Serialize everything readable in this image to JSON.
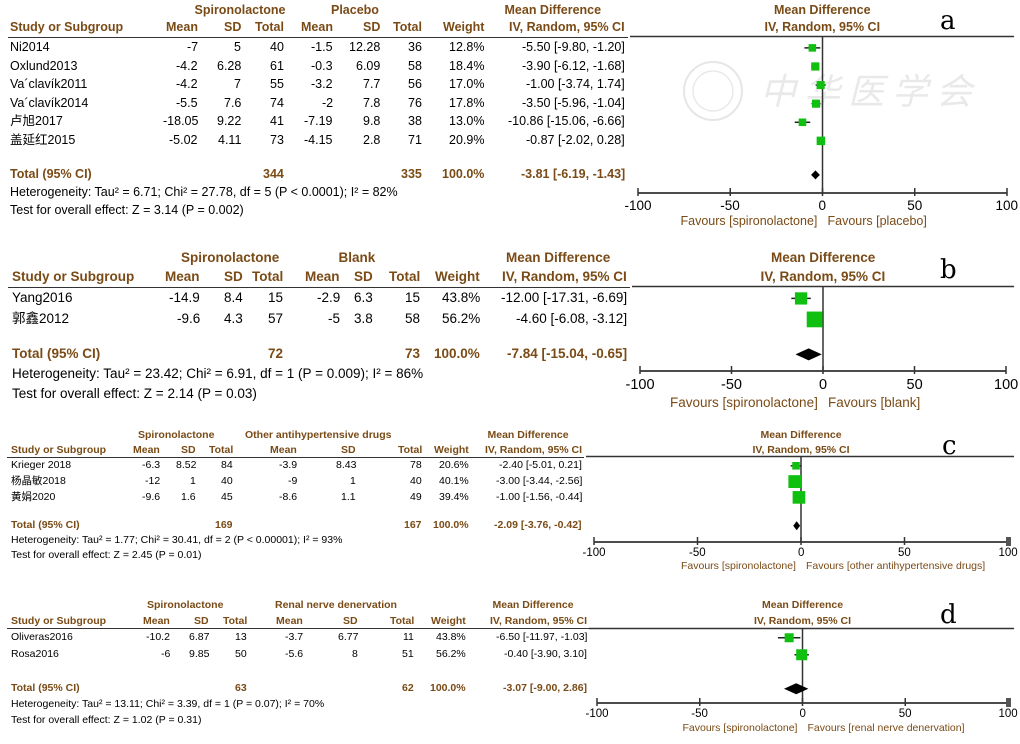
{
  "chart_data": [
    {
      "type": "forest",
      "panel_label": "a",
      "group1": "Spironolactone",
      "group2": "Placebo",
      "columns": [
        "Study or Subgroup",
        "Mean",
        "SD",
        "Total",
        "Mean",
        "SD",
        "Total",
        "Weight",
        "IV, Random, 95% CI"
      ],
      "effect_title": "Mean Difference",
      "effect_subtitle": "IV, Random, 95% CI",
      "studies": [
        {
          "name": "Ni2014",
          "m1": "-7",
          "sd1": "5",
          "n1": "40",
          "m2": "-1.5",
          "sd2": "12.28",
          "n2": "36",
          "weight": "12.8%",
          "ci_text": "-5.50 [-9.80, -1.20]",
          "md": -5.5,
          "lo": -9.8,
          "hi": -1.2,
          "w": 12.8
        },
        {
          "name": "Oxlund2013",
          "m1": "-4.2",
          "sd1": "6.28",
          "n1": "61",
          "m2": "-0.3",
          "sd2": "6.09",
          "n2": "58",
          "weight": "18.4%",
          "ci_text": "-3.90 [-6.12, -1.68]",
          "md": -3.9,
          "lo": -6.12,
          "hi": -1.68,
          "w": 18.4
        },
        {
          "name": "Va´clavík2011",
          "m1": "-4.2",
          "sd1": "7",
          "n1": "55",
          "m2": "-3.2",
          "sd2": "7.7",
          "n2": "56",
          "weight": "17.0%",
          "ci_text": "-1.00 [-3.74, 1.74]",
          "md": -1.0,
          "lo": -3.74,
          "hi": 1.74,
          "w": 17.0
        },
        {
          "name": "Va´clavík2014",
          "m1": "-5.5",
          "sd1": "7.6",
          "n1": "74",
          "m2": "-2",
          "sd2": "7.8",
          "n2": "76",
          "weight": "17.8%",
          "ci_text": "-3.50 [-5.96, -1.04]",
          "md": -3.5,
          "lo": -5.96,
          "hi": -1.04,
          "w": 17.8
        },
        {
          "name": "卢旭2017",
          "m1": "-18.05",
          "sd1": "9.22",
          "n1": "41",
          "m2": "-7.19",
          "sd2": "9.8",
          "n2": "38",
          "weight": "13.0%",
          "ci_text": "-10.86 [-15.06, -6.66]",
          "md": -10.86,
          "lo": -15.06,
          "hi": -6.66,
          "w": 13.0
        },
        {
          "name": "盖延红2015",
          "m1": "-5.02",
          "sd1": "4.11",
          "n1": "73",
          "m2": "-4.15",
          "sd2": "2.8",
          "n2": "71",
          "weight": "20.9%",
          "ci_text": "-0.87 [-2.02, 0.28]",
          "md": -0.87,
          "lo": -2.02,
          "hi": 0.28,
          "w": 20.9
        }
      ],
      "total": {
        "label": "Total (95% CI)",
        "n1": "344",
        "n2": "335",
        "weight": "100.0%",
        "ci_text": "-3.81 [-6.19, -1.43]",
        "md": -3.81,
        "lo": -6.19,
        "hi": -1.43
      },
      "heterogeneity": "Heterogeneity: Tau² = 6.71; Chi² = 27.78, df = 5 (P < 0.0001); I² = 82%",
      "overall_effect": "Test for overall effect: Z = 3.14 (P = 0.002)",
      "xlim": [
        -100,
        100
      ],
      "xticks": [
        "-100",
        "-50",
        "0",
        "50",
        "100"
      ],
      "favours_left": "Favours [spironolactone]",
      "favours_right": "Favours [placebo]"
    },
    {
      "type": "forest",
      "panel_label": "b",
      "group1": "Spironolactone",
      "group2": "Blank",
      "columns": [
        "Study or Subgroup",
        "Mean",
        "SD",
        "Total",
        "Mean",
        "SD",
        "Total",
        "Weight",
        "IV, Random, 95% CI"
      ],
      "effect_title": "Mean Difference",
      "effect_subtitle": "IV, Random, 95% CI",
      "studies": [
        {
          "name": "Yang2016",
          "m1": "-14.9",
          "sd1": "8.4",
          "n1": "15",
          "m2": "-2.9",
          "sd2": "6.3",
          "n2": "15",
          "weight": "43.8%",
          "ci_text": "-12.00 [-17.31, -6.69]",
          "md": -12.0,
          "lo": -17.31,
          "hi": -6.69,
          "w": 43.8
        },
        {
          "name": "郭鑫2012",
          "m1": "-9.6",
          "sd1": "4.3",
          "n1": "57",
          "m2": "-5",
          "sd2": "3.8",
          "n2": "58",
          "weight": "56.2%",
          "ci_text": "-4.60 [-6.08, -3.12]",
          "md": -4.6,
          "lo": -6.08,
          "hi": -3.12,
          "w": 56.2
        }
      ],
      "total": {
        "label": "Total (95% CI)",
        "n1": "72",
        "n2": "73",
        "weight": "100.0%",
        "ci_text": "-7.84 [-15.04, -0.65]",
        "md": -7.84,
        "lo": -15.04,
        "hi": -0.65
      },
      "heterogeneity": "Heterogeneity: Tau² = 23.42; Chi² = 6.91, df = 1 (P = 0.009); I² = 86%",
      "overall_effect": "Test for overall effect: Z = 2.14 (P = 0.03)",
      "xlim": [
        -100,
        100
      ],
      "xticks": [
        "-100",
        "-50",
        "0",
        "50",
        "100"
      ],
      "favours_left": "Favours [spironolactone]",
      "favours_right": "Favours [blank]"
    },
    {
      "type": "forest",
      "panel_label": "c",
      "group1": "Spironolactone",
      "group2": "Other antihypertensive drugs",
      "columns": [
        "Study or Subgroup",
        "Mean",
        "SD",
        "Total",
        "Mean",
        "SD",
        "Total",
        "Weight",
        "IV, Random, 95% CI"
      ],
      "effect_title": "Mean Difference",
      "effect_subtitle": "IV, Random, 95% CI",
      "studies": [
        {
          "name": "Krieger 2018",
          "m1": "-6.3",
          "sd1": "8.52",
          "n1": "84",
          "m2": "-3.9",
          "sd2": "8.43",
          "n2": "78",
          "weight": "20.6%",
          "ci_text": "-2.40 [-5.01, 0.21]",
          "md": -2.4,
          "lo": -5.01,
          "hi": 0.21,
          "w": 20.6
        },
        {
          "name": "杨晶敏2018",
          "m1": "-12",
          "sd1": "1",
          "n1": "40",
          "m2": "-9",
          "sd2": "1",
          "n2": "40",
          "weight": "40.1%",
          "ci_text": "-3.00 [-3.44, -2.56]",
          "md": -3.0,
          "lo": -3.44,
          "hi": -2.56,
          "w": 40.1
        },
        {
          "name": "黄娟2020",
          "m1": "-9.6",
          "sd1": "1.6",
          "n1": "45",
          "m2": "-8.6",
          "sd2": "1.1",
          "n2": "49",
          "weight": "39.4%",
          "ci_text": "-1.00 [-1.56, -0.44]",
          "md": -1.0,
          "lo": -1.56,
          "hi": -0.44,
          "w": 39.4
        }
      ],
      "total": {
        "label": "Total (95% CI)",
        "n1": "169",
        "n2": "167",
        "weight": "100.0%",
        "ci_text": "-2.09 [-3.76, -0.42]",
        "md": -2.09,
        "lo": -3.76,
        "hi": -0.42
      },
      "heterogeneity": "Heterogeneity: Tau² = 1.77; Chi² = 30.41, df = 2 (P < 0.00001); I² = 93%",
      "overall_effect": "Test for overall effect: Z = 2.45 (P = 0.01)",
      "xlim": [
        -100,
        100
      ],
      "xticks": [
        "-100",
        "-50",
        "0",
        "50",
        "100"
      ],
      "favours_left": "Favours [spironolactone]",
      "favours_right": "Favours [other antihypertensive drugs]"
    },
    {
      "type": "forest",
      "panel_label": "d",
      "group1": "Spironolactone",
      "group2": "Renal nerve denervation",
      "columns": [
        "Study or Subgroup",
        "Mean",
        "SD",
        "Total",
        "Mean",
        "SD",
        "Total",
        "Weight",
        "IV, Random, 95% CI"
      ],
      "effect_title": "Mean Difference",
      "effect_subtitle": "IV, Random, 95% CI",
      "studies": [
        {
          "name": "Oliveras2016",
          "m1": "-10.2",
          "sd1": "6.87",
          "n1": "13",
          "m2": "-3.7",
          "sd2": "6.77",
          "n2": "11",
          "weight": "43.8%",
          "ci_text": "-6.50 [-11.97, -1.03]",
          "md": -6.5,
          "lo": -11.97,
          "hi": -1.03,
          "w": 43.8
        },
        {
          "name": "Rosa2016",
          "m1": "-6",
          "sd1": "9.85",
          "n1": "50",
          "m2": "-5.6",
          "sd2": "8",
          "n2": "51",
          "weight": "56.2%",
          "ci_text": "-0.40 [-3.90, 3.10]",
          "md": -0.4,
          "lo": -3.9,
          "hi": 3.1,
          "w": 56.2
        }
      ],
      "total": {
        "label": "Total (95% CI)",
        "n1": "63",
        "n2": "62",
        "weight": "100.0%",
        "ci_text": "-3.07 [-9.00, 2.86]",
        "md": -3.07,
        "lo": -9.0,
        "hi": 2.86
      },
      "heterogeneity": "Heterogeneity: Tau² = 13.11; Chi² = 3.39, df = 1 (P = 0.07); I² = 70%",
      "overall_effect": "Test for overall effect: Z = 1.02 (P = 0.31)",
      "xlim": [
        -100,
        100
      ],
      "xticks": [
        "-100",
        "-50",
        "0",
        "50",
        "100"
      ],
      "favours_left": "Favours [spironolactone]",
      "favours_right": "Favours [renal nerve denervation]"
    }
  ],
  "watermark": {
    "text": "中华医学会"
  },
  "colors": {
    "header": "#7a4b16",
    "square": "#10c010",
    "axis": "#333333",
    "diamond": "#000000"
  }
}
